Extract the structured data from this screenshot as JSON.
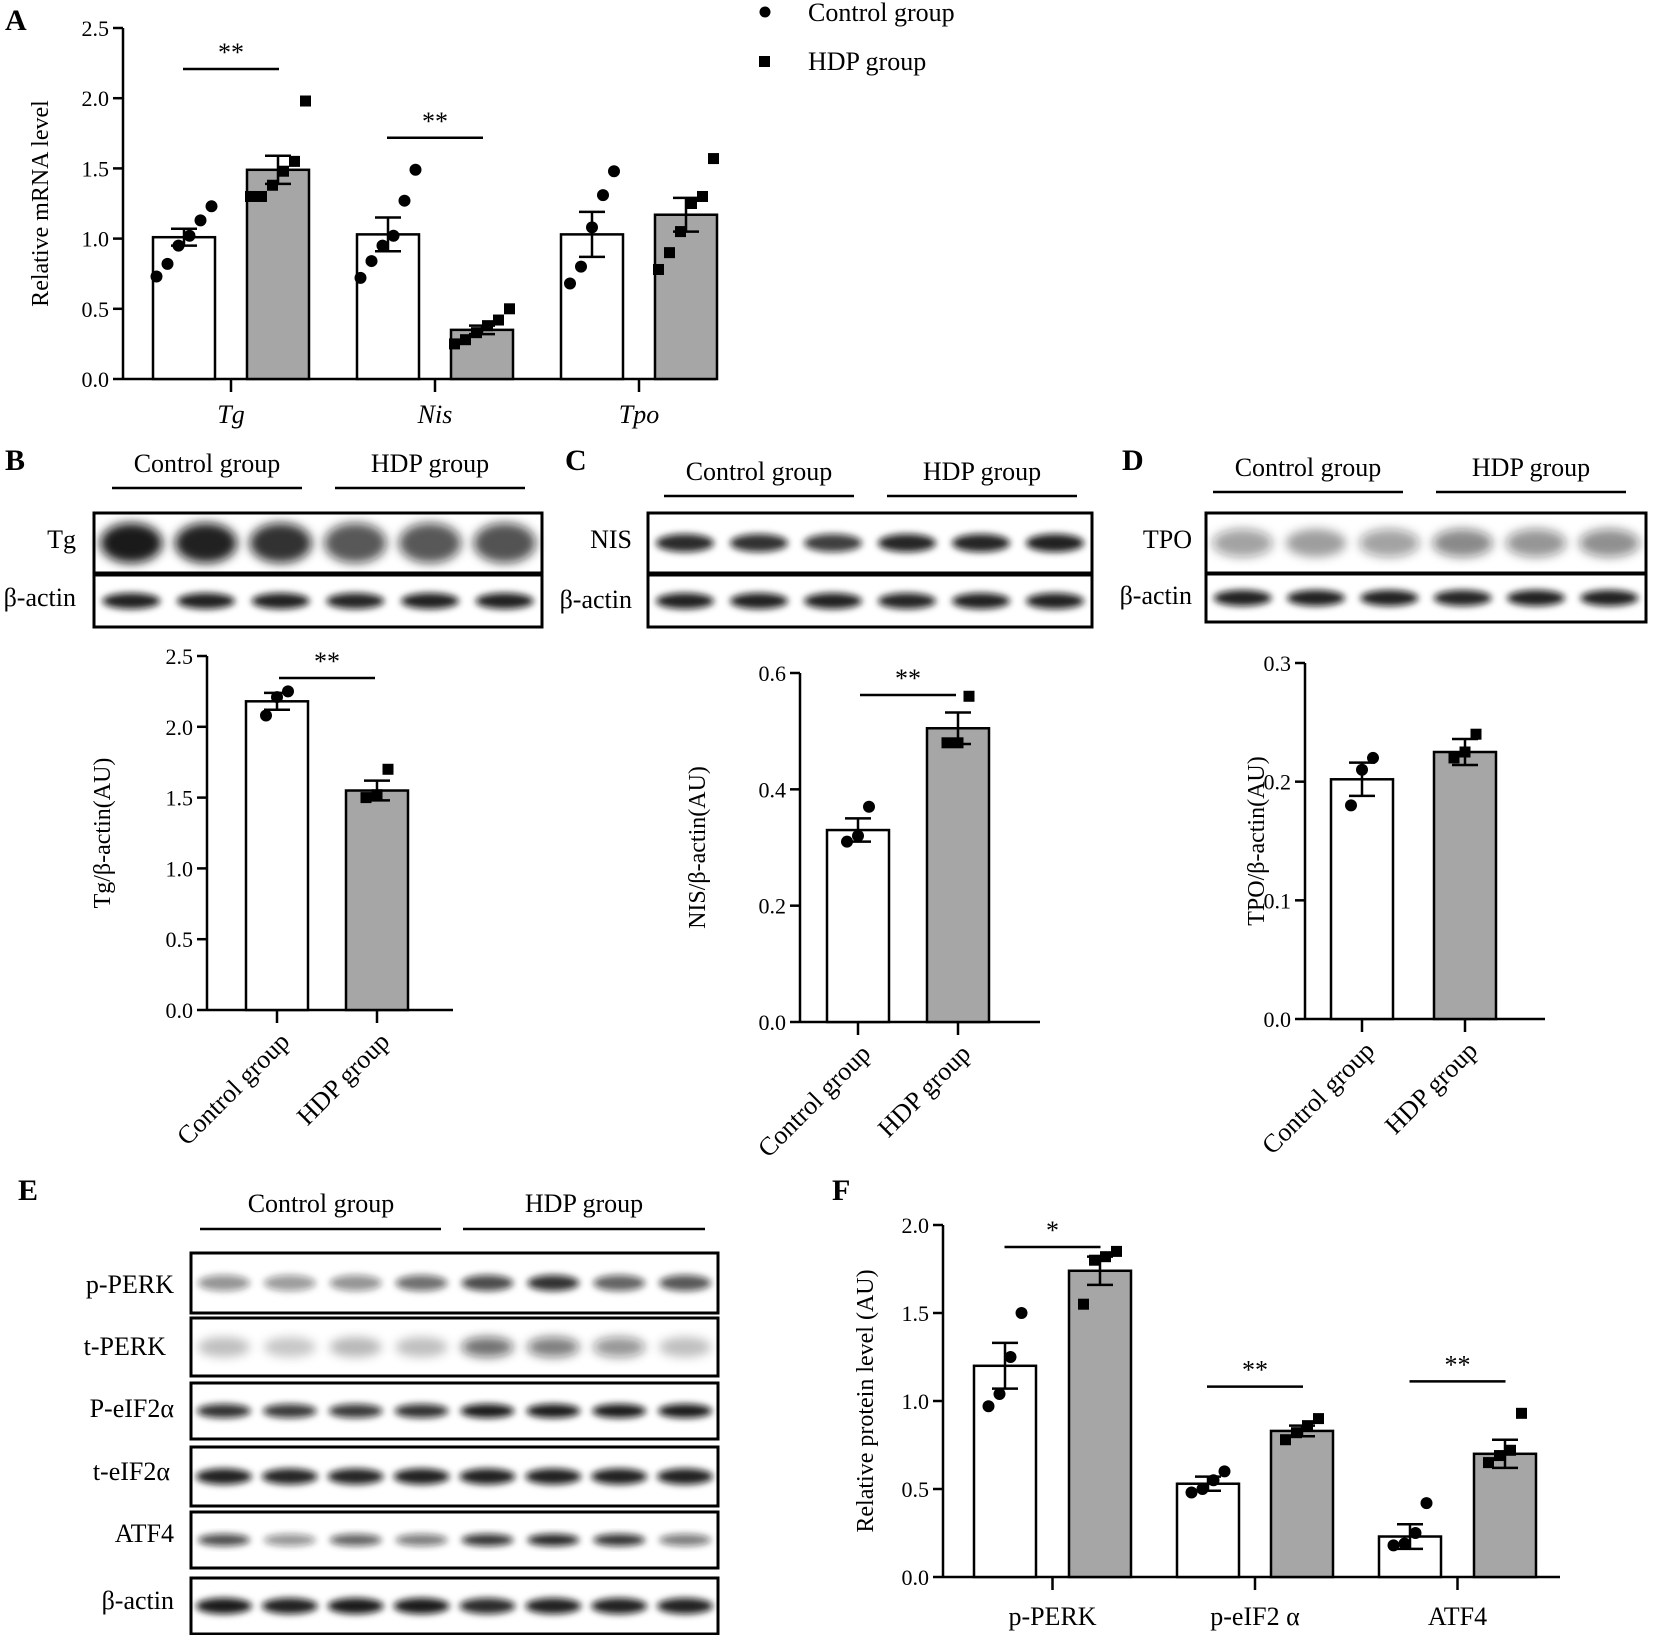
{
  "panels": {
    "A": "A",
    "B": "B",
    "C": "C",
    "D": "D",
    "E": "E",
    "F": "F"
  },
  "legend": {
    "control": "Control group",
    "hdp": "HDP group"
  },
  "blots": {
    "B": {
      "group_control": "Control group",
      "group_hdp": "HDP group",
      "rows": [
        {
          "label": "Tg",
          "type": "tg"
        },
        {
          "label": "β-actin",
          "type": "actin3"
        }
      ]
    },
    "C": {
      "group_control": "Control group",
      "group_hdp": "HDP group",
      "rows": [
        {
          "label": "NIS",
          "type": "nis"
        },
        {
          "label": "β-actin",
          "type": "actin3"
        }
      ]
    },
    "D": {
      "group_control": "Control group",
      "group_hdp": "HDP group",
      "rows": [
        {
          "label": "TPO",
          "type": "tpo"
        },
        {
          "label": "β-actin",
          "type": "actin3"
        }
      ]
    },
    "E": {
      "group_control": "Control group",
      "group_hdp": "HDP group",
      "rows": [
        {
          "label": "p-PERK",
          "type": "pperk"
        },
        {
          "label": "t-PERK",
          "type": "tperk"
        },
        {
          "label": "P-eIF2α",
          "type": "peif"
        },
        {
          "label": "t-eIF2α",
          "type": "teif"
        },
        {
          "label": "ATF4",
          "type": "atf4"
        },
        {
          "label": "β-actin",
          "type": "actin4"
        }
      ]
    }
  },
  "chart_data": [
    {
      "id": "A",
      "type": "bar",
      "ylabel": "Relative mRNA level",
      "ylim": [
        0,
        2.5
      ],
      "yticks": [
        "0.0",
        "0.5",
        "1.0",
        "1.5",
        "2.0",
        "2.5"
      ],
      "categories": [
        "Tg",
        "Nis",
        "Tpo"
      ],
      "series": [
        {
          "name": "Control group",
          "values": [
            1.01,
            1.03,
            1.03
          ],
          "sem": [
            0.06,
            0.12,
            0.16
          ],
          "points": [
            [
              0.73,
              0.82,
              0.95,
              1.02,
              1.13,
              1.23
            ],
            [
              0.72,
              0.84,
              0.95,
              1.02,
              1.27,
              1.49
            ],
            [
              0.68,
              0.8,
              1.08,
              1.31,
              1.48
            ]
          ]
        },
        {
          "name": "HDP group",
          "values": [
            1.49,
            0.35,
            1.17
          ],
          "sem": [
            0.1,
            0.03,
            0.12
          ],
          "points": [
            [
              1.3,
              1.3,
              1.38,
              1.48,
              1.55,
              1.98
            ],
            [
              0.25,
              0.28,
              0.33,
              0.38,
              0.42,
              0.5
            ],
            [
              0.78,
              0.9,
              1.05,
              1.25,
              1.3,
              1.57
            ]
          ]
        }
      ],
      "significance": [
        "**",
        "**",
        ""
      ]
    },
    {
      "id": "B",
      "type": "bar",
      "ylabel": "Tg/β-actin(AU)",
      "ylim": [
        0,
        2.5
      ],
      "yticks": [
        "0.0",
        "0.5",
        "1.0",
        "1.5",
        "2.0",
        "2.5"
      ],
      "categories": [
        "Control group",
        "HDP group"
      ],
      "values": [
        2.18,
        1.55
      ],
      "sem": [
        0.06,
        0.07
      ],
      "points": [
        [
          2.08,
          2.21,
          2.25
        ],
        [
          1.5,
          1.52,
          1.7
        ]
      ],
      "significance": "**"
    },
    {
      "id": "C",
      "type": "bar",
      "ylabel": "NIS/β-actin(AU)",
      "ylim": [
        0,
        0.6
      ],
      "yticks": [
        "0.0",
        "0.2",
        "0.4",
        "0.6"
      ],
      "categories": [
        "Control group",
        "HDP group"
      ],
      "values": [
        0.33,
        0.505
      ],
      "sem": [
        0.02,
        0.027
      ],
      "points": [
        [
          0.31,
          0.32,
          0.37
        ],
        [
          0.48,
          0.48,
          0.56
        ]
      ],
      "significance": "**"
    },
    {
      "id": "D",
      "type": "bar",
      "ylabel": "TPO/β-actin(AU)",
      "ylim": [
        0,
        0.3
      ],
      "yticks": [
        "0.0",
        "0.1",
        "0.2",
        "0.3"
      ],
      "categories": [
        "Control group",
        "HDP group"
      ],
      "values": [
        0.202,
        0.225
      ],
      "sem": [
        0.014,
        0.011
      ],
      "points": [
        [
          0.18,
          0.21,
          0.22
        ],
        [
          0.22,
          0.225,
          0.24
        ]
      ],
      "significance": ""
    },
    {
      "id": "F",
      "type": "bar",
      "ylabel": "Relative protein level (AU)",
      "ylim": [
        0,
        2.0
      ],
      "yticks": [
        "0.0",
        "0.5",
        "1.0",
        "1.5",
        "2.0"
      ],
      "categories": [
        "p-PERK",
        "p-eIF2 α",
        "ATF4"
      ],
      "series": [
        {
          "name": "Control group",
          "values": [
            1.2,
            0.53,
            0.23
          ],
          "sem": [
            0.13,
            0.04,
            0.07
          ],
          "points": [
            [
              0.97,
              1.04,
              1.25,
              1.5
            ],
            [
              0.48,
              0.5,
              0.55,
              0.6
            ],
            [
              0.18,
              0.19,
              0.25,
              0.42
            ]
          ]
        },
        {
          "name": "HDP group",
          "values": [
            1.74,
            0.83,
            0.7
          ],
          "sem": [
            0.08,
            0.03,
            0.08
          ],
          "points": [
            [
              1.55,
              1.8,
              1.82,
              1.85
            ],
            [
              0.78,
              0.82,
              0.86,
              0.9
            ],
            [
              0.65,
              0.69,
              0.72,
              0.93
            ]
          ]
        }
      ],
      "significance": [
        "*",
        "**",
        "**"
      ]
    }
  ]
}
